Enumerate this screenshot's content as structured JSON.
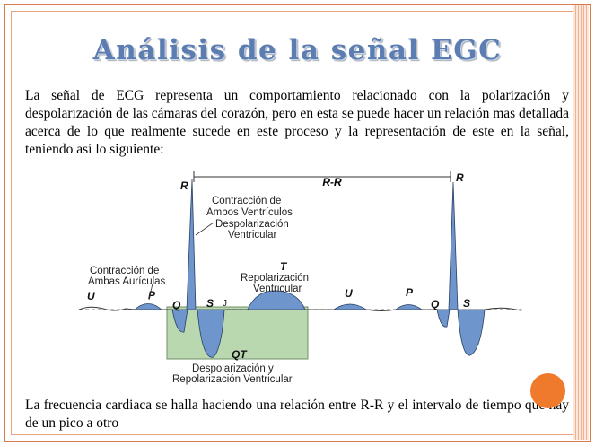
{
  "slide": {
    "title": "Análisis de la señal EGC",
    "paragraph1": "La señal de ECG representa un comportamiento relacionado con la polarización  y despolarización de las cámaras del corazón, pero en esta se puede hacer un  relación mas detallada acerca de lo que realmente sucede en este proceso y la representación  de este en la señal, teniendo así lo siguiente:",
    "paragraph2": "La frecuencia cardiaca se halla haciendo una relación entre R-R y el intervalo de tiempo que hay de un pico a otro"
  },
  "diagram": {
    "r_label_left": "R",
    "r_label_right": "R",
    "rr_label": "R-R",
    "u_left": "U",
    "p_left": "P",
    "q_left": "Q",
    "s_left": "S",
    "j_label": "J",
    "t_label": "T",
    "qt_label": "QT",
    "u_right": "U",
    "p_right": "P",
    "q_right": "Q",
    "s_right": "S",
    "ann_ventricles_1": "Contracción de",
    "ann_ventricles_2": "Ambos Ventrículos",
    "ann_ventricles_3": "Despolarización",
    "ann_ventricles_4": "Ventricular",
    "ann_atria_1": "Contracción de",
    "ann_atria_2": "Ambas Aurículas",
    "ann_repol_1": "Repolarización",
    "ann_repol_2": "Ventricular",
    "ann_qt_1": "Despolarización y",
    "ann_qt_2": "Repolarización Ventricular"
  },
  "colors": {
    "title": "#5b7db1",
    "wave_fill": "#6f96cc",
    "qt_box": "#b9d8b0",
    "accent_dot": "#f07a2c",
    "border": "#d97a4f"
  }
}
